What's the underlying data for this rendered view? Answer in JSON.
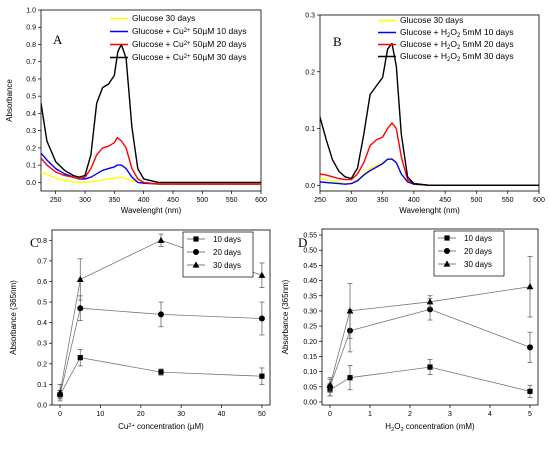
{
  "chart_data": [
    {
      "type": "line",
      "panel_label": "A",
      "xlabel": "Wavelenght (nm)",
      "ylabel": "Absorbance",
      "xlim": [
        225,
        600
      ],
      "ylim": [
        -0.05,
        1.0
      ],
      "xticks": [
        250,
        300,
        350,
        400,
        450,
        500,
        550,
        600
      ],
      "yticks": [
        0.0,
        0.1,
        0.2,
        0.3,
        0.4,
        0.5,
        0.6,
        0.7,
        0.8,
        0.9,
        1.0
      ],
      "ytick_labels": [
        "0.0",
        "0.1",
        "0.2",
        "0.3",
        "0.4",
        "0.5",
        "0.6",
        "0.7",
        "0.8",
        "0.9",
        "1.0"
      ],
      "legend_position": "top-right",
      "series": [
        {
          "name": "Glucose 30 days",
          "name_parts": [
            "Glucose 30 days"
          ],
          "color": "#ffff00",
          "x": [
            225,
            240,
            255,
            270,
            285,
            300,
            315,
            330,
            340,
            350,
            358,
            362,
            370,
            380,
            390,
            400,
            425,
            450,
            500,
            550,
            600
          ],
          "y": [
            0.06,
            0.04,
            0.02,
            0.01,
            0.0,
            0.0,
            0.005,
            0.015,
            0.02,
            0.025,
            0.03,
            0.03,
            0.02,
            0.01,
            0.0,
            -0.005,
            -0.005,
            -0.005,
            -0.005,
            -0.005,
            -0.005
          ]
        },
        {
          "name": "Glucose + Cu2+ 50µM 10 days",
          "name_parts": [
            "Glucose + Cu",
            "2+",
            " 50µM 10 days"
          ],
          "color": "#0000ff",
          "x": [
            225,
            235,
            250,
            265,
            280,
            290,
            300,
            310,
            320,
            330,
            340,
            350,
            355,
            362,
            370,
            380,
            390,
            400,
            425,
            450,
            500,
            550,
            600
          ],
          "y": [
            0.17,
            0.13,
            0.08,
            0.05,
            0.03,
            0.02,
            0.02,
            0.03,
            0.05,
            0.07,
            0.08,
            0.09,
            0.1,
            0.1,
            0.08,
            0.03,
            0.0,
            -0.005,
            -0.01,
            -0.01,
            -0.01,
            -0.01,
            -0.01
          ]
        },
        {
          "name": "Glucose + Cu2+ 50µM 20 days",
          "name_parts": [
            "Glucose + Cu",
            "2+",
            " 50µM 20 days"
          ],
          "color": "#ff0000",
          "x": [
            225,
            235,
            250,
            265,
            280,
            290,
            300,
            310,
            320,
            330,
            340,
            350,
            355,
            362,
            370,
            380,
            390,
            400,
            425,
            450,
            500,
            550,
            600
          ],
          "y": [
            0.14,
            0.1,
            0.06,
            0.04,
            0.03,
            0.02,
            0.03,
            0.08,
            0.16,
            0.2,
            0.21,
            0.23,
            0.26,
            0.24,
            0.2,
            0.08,
            0.02,
            0.0,
            -0.01,
            -0.01,
            -0.01,
            -0.01,
            -0.01
          ]
        },
        {
          "name": "Glucose + Cu2+ 50µM 30 days",
          "name_parts": [
            "Glucose + Cu",
            "2+",
            " 50µM 30 days"
          ],
          "color": "#000000",
          "x": [
            225,
            235,
            250,
            265,
            280,
            290,
            300,
            310,
            320,
            330,
            340,
            350,
            356,
            362,
            370,
            380,
            390,
            400,
            425,
            450,
            500,
            550,
            600
          ],
          "y": [
            0.46,
            0.24,
            0.12,
            0.07,
            0.04,
            0.03,
            0.04,
            0.16,
            0.46,
            0.55,
            0.57,
            0.62,
            0.76,
            0.8,
            0.72,
            0.32,
            0.08,
            0.02,
            0.0,
            0.0,
            0.0,
            0.0,
            0.0
          ]
        }
      ]
    },
    {
      "type": "line",
      "panel_label": "B",
      "xlabel": "Wavelenght (nm)",
      "ylabel": "",
      "xlim": [
        250,
        600
      ],
      "ylim": [
        -0.01,
        0.3
      ],
      "xticks": [
        250,
        300,
        350,
        400,
        450,
        500,
        550,
        600
      ],
      "yticks": [
        0.0,
        0.1,
        0.2,
        0.3
      ],
      "ytick_labels": [
        "0.0",
        "0.1",
        "0.2",
        "0.3"
      ],
      "legend_position": "top-right",
      "series": [
        {
          "name": "Glucose 30 days",
          "name_parts": [
            "Glucose 30 days"
          ],
          "color": "#ffff00",
          "x": [
            250,
            260,
            270,
            280,
            290,
            300,
            310,
            320,
            330,
            340,
            350,
            358,
            365,
            372,
            380,
            390,
            400,
            425,
            450,
            500,
            550,
            600
          ],
          "y": [
            0.012,
            0.01,
            0.008,
            0.005,
            0.003,
            0.003,
            0.01,
            0.02,
            0.03,
            0.035,
            0.04,
            0.045,
            0.048,
            0.04,
            0.02,
            0.006,
            0.002,
            0.0,
            0.0,
            0.0,
            0.0,
            0.0
          ]
        },
        {
          "name": "Glucose + H2O2 5mM 10 days",
          "name_parts": [
            "Glucose + H",
            "2",
            "O",
            "2",
            " 5mM 10 days"
          ],
          "color": "#0000ff",
          "x": [
            250,
            260,
            270,
            280,
            290,
            300,
            310,
            320,
            330,
            340,
            350,
            358,
            365,
            372,
            380,
            390,
            400,
            425,
            450,
            500,
            550,
            600
          ],
          "y": [
            0.006,
            0.005,
            0.004,
            0.003,
            0.002,
            0.003,
            0.008,
            0.018,
            0.026,
            0.032,
            0.038,
            0.046,
            0.046,
            0.04,
            0.02,
            0.006,
            0.002,
            0.0,
            0.0,
            0.0,
            0.0,
            0.0
          ]
        },
        {
          "name": "Glucose + H2O2 5mM 20 days",
          "name_parts": [
            "Glucose + H",
            "2",
            "O",
            "2",
            " 5mM 20 days"
          ],
          "color": "#ff0000",
          "x": [
            250,
            260,
            270,
            280,
            290,
            300,
            310,
            320,
            330,
            340,
            350,
            358,
            365,
            372,
            380,
            390,
            400,
            425,
            450,
            500,
            550,
            600
          ],
          "y": [
            0.02,
            0.018,
            0.015,
            0.012,
            0.01,
            0.01,
            0.02,
            0.04,
            0.07,
            0.08,
            0.085,
            0.1,
            0.11,
            0.1,
            0.05,
            0.01,
            0.003,
            0.0,
            0.0,
            0.0,
            0.0,
            0.0
          ]
        },
        {
          "name": "Glucose + H2O2 5mM 30 days",
          "name_parts": [
            "Glucose + H",
            "2",
            "O",
            "2",
            " 5mM 30 days"
          ],
          "color": "#000000",
          "x": [
            250,
            260,
            270,
            280,
            290,
            300,
            310,
            320,
            330,
            340,
            350,
            358,
            365,
            372,
            380,
            390,
            400,
            425,
            450,
            500,
            550,
            600
          ],
          "y": [
            0.12,
            0.08,
            0.045,
            0.025,
            0.015,
            0.012,
            0.03,
            0.09,
            0.16,
            0.175,
            0.19,
            0.24,
            0.25,
            0.21,
            0.09,
            0.015,
            0.003,
            0.0,
            0.0,
            0.0,
            0.0,
            0.0
          ]
        }
      ]
    },
    {
      "type": "line",
      "panel_label": "C",
      "xlabel_parts": [
        "Cu",
        "2+",
        " concentration (µM)"
      ],
      "ylabel": "Absorbance (365nm)",
      "xlim": [
        -2,
        52
      ],
      "ylim": [
        0.0,
        0.85
      ],
      "xticks": [
        0,
        10,
        20,
        30,
        40,
        50
      ],
      "yticks": [
        0.0,
        0.1,
        0.2,
        0.3,
        0.4,
        0.5,
        0.6,
        0.7,
        0.8
      ],
      "ytick_labels": [
        "0.0",
        "0.1",
        "0.2",
        "0.3",
        "0.4",
        "0.5",
        "0.6",
        "0.7",
        "0.8"
      ],
      "legend_position": "top-center",
      "series": [
        {
          "name": "10 days",
          "marker": "square",
          "x": [
            0,
            5,
            25,
            50
          ],
          "y": [
            0.05,
            0.23,
            0.16,
            0.14
          ],
          "err": [
            0.02,
            0.04,
            0.015,
            0.04
          ]
        },
        {
          "name": "20 days",
          "marker": "circle",
          "x": [
            0,
            5,
            25,
            50
          ],
          "y": [
            0.05,
            0.47,
            0.44,
            0.42
          ],
          "err": [
            0.02,
            0.06,
            0.06,
            0.08
          ]
        },
        {
          "name": "30 days",
          "marker": "triangle",
          "x": [
            0,
            5,
            25,
            50
          ],
          "y": [
            0.06,
            0.61,
            0.8,
            0.63
          ],
          "err": [
            0.04,
            0.1,
            0.03,
            0.06
          ]
        }
      ]
    },
    {
      "type": "line",
      "panel_label": "D",
      "xlabel_parts": [
        "H",
        "2",
        "O",
        "2",
        " concentration (mM)"
      ],
      "ylabel": "Absorbance (365nm)",
      "xlim": [
        -0.2,
        5.2
      ],
      "ylim": [
        -0.01,
        0.57
      ],
      "xticks": [
        0,
        1,
        2,
        3,
        4,
        5
      ],
      "yticks": [
        0.0,
        0.05,
        0.1,
        0.15,
        0.2,
        0.25,
        0.3,
        0.35,
        0.4,
        0.45,
        0.5,
        0.55
      ],
      "ytick_labels": [
        "0.00",
        "0.05",
        "0.10",
        "0.15",
        "0.20",
        "0.25",
        "0.30",
        "0.35",
        "0.40",
        "0.45",
        "0.50",
        "0.55"
      ],
      "legend_position": "top-center",
      "series": [
        {
          "name": "10 days",
          "marker": "square",
          "x": [
            0,
            0.5,
            2.5,
            5
          ],
          "y": [
            0.04,
            0.08,
            0.115,
            0.035
          ],
          "err": [
            0.02,
            0.04,
            0.025,
            0.02
          ]
        },
        {
          "name": "20 days",
          "marker": "circle",
          "x": [
            0,
            0.5,
            2.5,
            5
          ],
          "y": [
            0.05,
            0.235,
            0.305,
            0.18
          ],
          "err": [
            0.03,
            0.07,
            0.035,
            0.05
          ]
        },
        {
          "name": "30 days",
          "marker": "triangle",
          "x": [
            0,
            0.5,
            2.5,
            5
          ],
          "y": [
            0.055,
            0.3,
            0.33,
            0.38
          ],
          "err": [
            0.02,
            0.09,
            0.02,
            0.1
          ]
        }
      ]
    }
  ]
}
